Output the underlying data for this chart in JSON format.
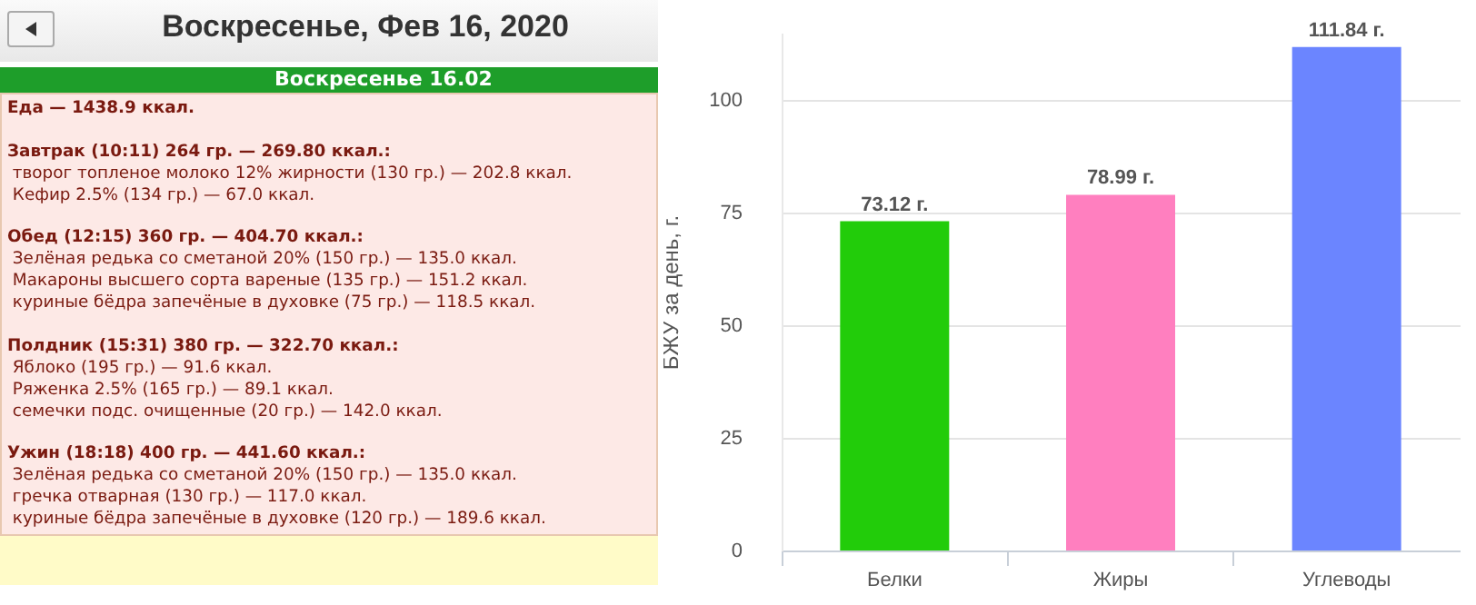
{
  "chart_data": [
    {
      "type": "other",
      "title": "Воскресенье, Фев 16, 2020",
      "subtitle": "Воскресенье 16.02",
      "annotations": [
        "Еда — 1438.9 ккал.",
        "Завтрак (10:11) 264 гр. — 269.80 ккал.:\n творог топленое молоко 12% жирности (130 гр.) — 202.8 ккал.\n Кефир 2.5% (134 гр.) — 67.0 ккал.",
        "Обед (12:15) 360 гр. — 404.70 ккал.:\n Зелёная редька со сметаной 20% (150 гр.) — 135.0 ккал.\n Макароны высшего сорта вареные (135 гр.) — 151.2 ккал.\n куриные бёдра запечёные в духовке (75 гр.) — 118.5 ккал.",
        "Полдник (15:31) 380 гр. — 322.70 ккал.:\n Яблоко (195 гр.) — 91.6 ккал.\n Ряженка 2.5% (165 гр.) — 89.1 ккал.\n семечки подс. очищенные (20 гр.) — 142.0 ккал.",
        "Ужин (18:18) 400 гр. — 441.60 ккал.:\n Зелёная редька со сметаной 20% (150 гр.) — 135.0 ккал.\n гречка отварная (130 гр.) — 117.0 ккал.\n куриные бёдра запечёные в духовке (120 гр.) — 189.6 ккал."
      ]
    },
    {
      "type": "bar",
      "ylabel": "БЖУ за день, г.",
      "categories": [
        "Белки",
        "Жиры",
        "Углеводы"
      ],
      "values": [
        73.12,
        78.99,
        111.84
      ],
      "colors": [
        "#22cc0a",
        "#ff7fbf",
        "#6b85ff"
      ],
      "value_labels": [
        "73.12 г.",
        "78.99 г.",
        "111.84 г."
      ],
      "ylim": [
        0,
        115
      ],
      "yticks": [
        0,
        25,
        50,
        75,
        100
      ],
      "grid": "y"
    }
  ]
}
